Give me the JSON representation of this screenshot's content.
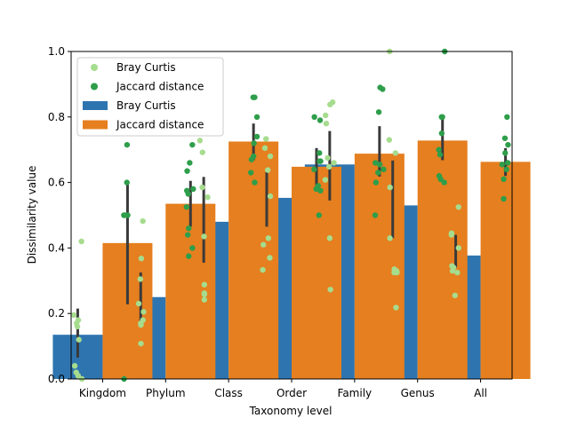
{
  "chart_data": {
    "type": "bar",
    "xlabel": "Taxonomy level",
    "ylabel": "Dissimilarity value",
    "ylim": [
      0,
      1.0
    ],
    "yticks": [
      "0.0",
      "0.2",
      "0.4",
      "0.6",
      "0.8",
      "1.0"
    ],
    "categories": [
      "Kingdom",
      "Phylum",
      "Class",
      "Order",
      "Family",
      "Genus",
      "All"
    ],
    "series": [
      {
        "name": "Bray Curtis",
        "color": "#2e75b0",
        "values": [
          0.135,
          0.25,
          0.48,
          0.553,
          0.655,
          0.53,
          0.377
        ],
        "ci": [
          [
            0.065,
            0.215
          ],
          [
            0.175,
            0.325
          ],
          [
            0.355,
            0.617
          ],
          [
            0.465,
            0.643
          ],
          [
            0.545,
            0.757
          ],
          [
            0.43,
            0.667
          ],
          [
            0.34,
            0.44
          ]
        ]
      },
      {
        "name": "Jaccard distance",
        "color": "#e57f1f",
        "values": [
          0.415,
          0.535,
          0.725,
          0.648,
          0.688,
          0.728,
          0.663
        ],
        "ci": [
          [
            0.228,
            0.595
          ],
          [
            0.465,
            0.605
          ],
          [
            0.668,
            0.78
          ],
          [
            0.588,
            0.705
          ],
          [
            0.618,
            0.772
          ],
          [
            0.668,
            0.805
          ],
          [
            0.62,
            0.705
          ]
        ]
      }
    ],
    "points": [
      {
        "name": "Bray Curtis",
        "color": "#a6dc8e",
        "values": [
          [
            0.42,
            0.195,
            0.18,
            0.17,
            0.16,
            0.12,
            0.04,
            0.02,
            0.01,
            0.0
          ],
          [
            0.482,
            0.368,
            0.305,
            0.23,
            0.205,
            0.18,
            0.17,
            0.165,
            0.108
          ],
          [
            0.728,
            0.692,
            0.585,
            0.555,
            0.435,
            0.288,
            0.262,
            0.258,
            0.242
          ],
          [
            0.733,
            0.705,
            0.68,
            0.638,
            0.558,
            0.43,
            0.41,
            0.37,
            0.333
          ],
          [
            0.845,
            0.838,
            0.805,
            0.78,
            0.675,
            0.66,
            0.648,
            0.608,
            0.43,
            0.273
          ],
          [
            1.0,
            0.73,
            0.69,
            0.585,
            0.43,
            0.335,
            0.33,
            0.325,
            0.325,
            0.218
          ],
          [
            0.525,
            0.445,
            0.44,
            0.4,
            0.345,
            0.34,
            0.33,
            0.325,
            0.255
          ]
        ]
      },
      {
        "name": "Jaccard distance",
        "color": "#2e9e4a",
        "values": [
          [
            0.715,
            0.6,
            0.5,
            0.5,
            0.5,
            0.0
          ],
          [
            0.715,
            0.66,
            0.635,
            0.58,
            0.575,
            0.565,
            0.525,
            0.46,
            0.44,
            0.4,
            0.375
          ],
          [
            0.86,
            0.86,
            0.8,
            0.74,
            0.72,
            0.68,
            0.67,
            0.63,
            0.6
          ],
          [
            0.8,
            0.79,
            0.69,
            0.665,
            0.665,
            0.64,
            0.59,
            0.58,
            0.575,
            0.5
          ],
          [
            0.89,
            0.885,
            0.815,
            0.66,
            0.655,
            0.64,
            0.63,
            0.6,
            0.5
          ],
          [
            1.0,
            0.8,
            0.8,
            0.75,
            0.7,
            0.685,
            0.62,
            0.61,
            0.6
          ],
          [
            0.8,
            0.735,
            0.715,
            0.69,
            0.66,
            0.655,
            0.64,
            0.61,
            0.55
          ]
        ]
      }
    ],
    "legend": {
      "placement": "upper-left",
      "entries": [
        {
          "label": "Bray Curtis",
          "kind": "point",
          "color": "#a6dc8e"
        },
        {
          "label": "Jaccard distance",
          "kind": "point",
          "color": "#2e9e4a"
        },
        {
          "label": "Bray Curtis",
          "kind": "bar",
          "color": "#2e75b0"
        },
        {
          "label": "Jaccard distance",
          "kind": "bar",
          "color": "#e57f1f"
        }
      ]
    },
    "errorbar_color": "#3a3a3a"
  }
}
